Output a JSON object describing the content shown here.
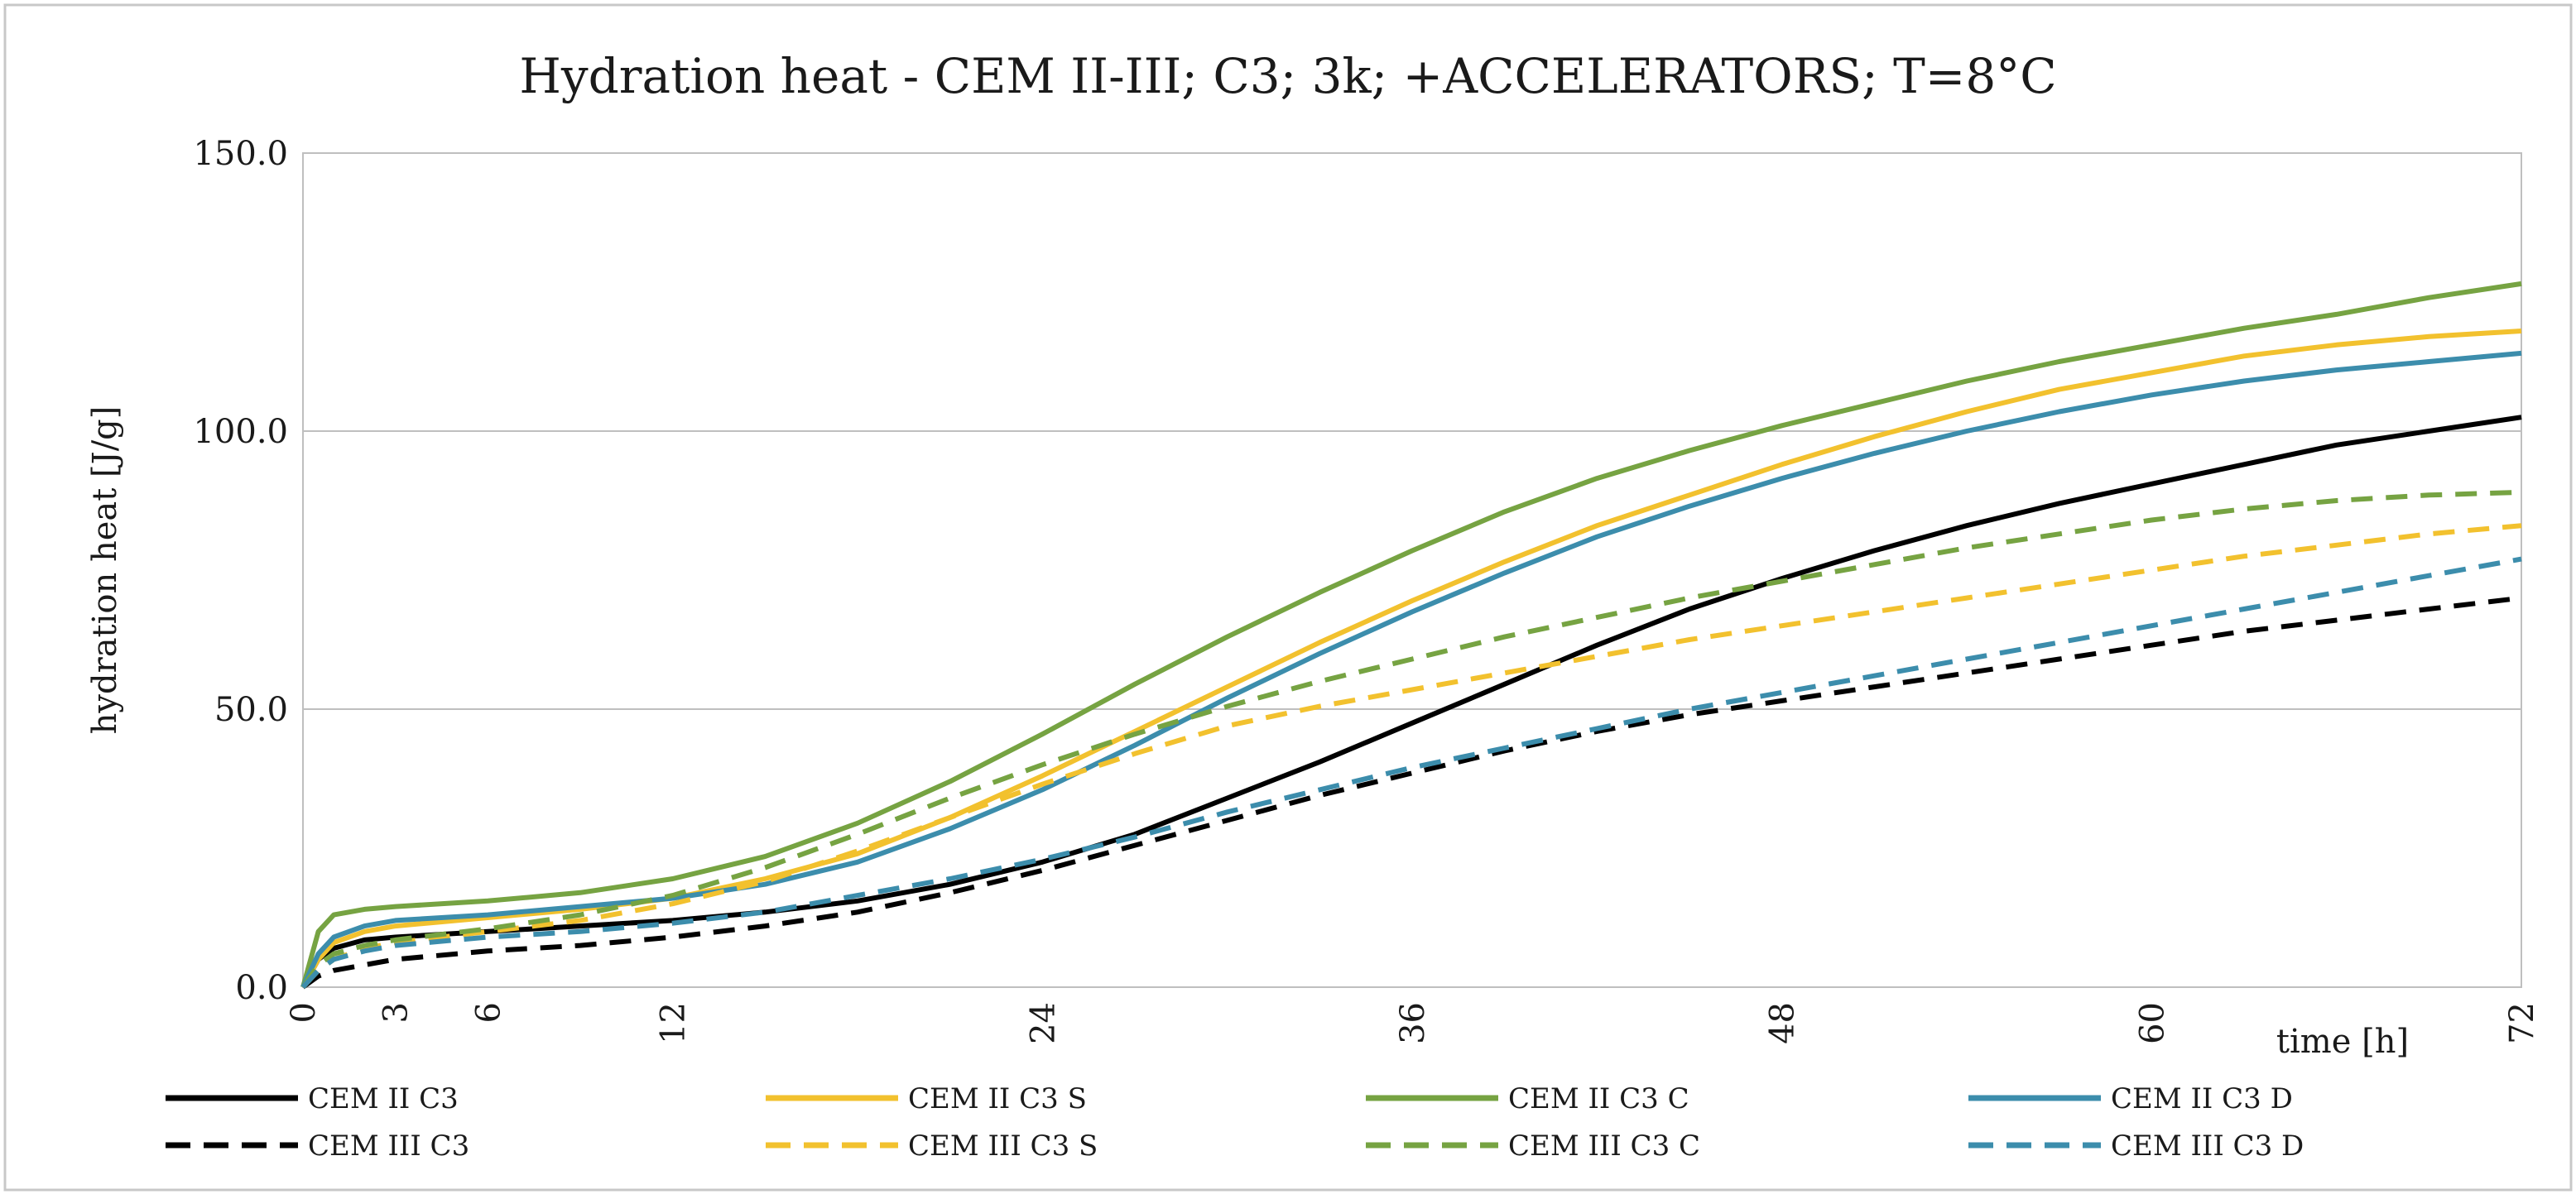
{
  "chart_data": {
    "type": "line",
    "title": "Hydration heat - CEM II-III; C3; 3k; +ACCELERATORS; T=8°C",
    "xlabel": "time [h]",
    "ylabel": "hydration heat [J/g]",
    "xlim": [
      0,
      72
    ],
    "ylim": [
      0,
      150
    ],
    "x_ticks": [
      0,
      3,
      6,
      12,
      24,
      36,
      48,
      60,
      72
    ],
    "x_tick_labels": [
      "0",
      "3",
      "6",
      "12",
      "24",
      "36",
      "48",
      "60",
      "72"
    ],
    "y_ticks": [
      0,
      50,
      100,
      150
    ],
    "y_tick_labels": [
      "0.0",
      "50.0",
      "100.0",
      "150.0"
    ],
    "grid": "horizontal",
    "legend_position": "bottom",
    "x": [
      0,
      0.5,
      1,
      2,
      3,
      6,
      9,
      12,
      15,
      18,
      21,
      24,
      27,
      30,
      33,
      36,
      39,
      42,
      45,
      48,
      51,
      54,
      57,
      60,
      63,
      66,
      69,
      72
    ],
    "series": [
      {
        "name": "CEM II C3",
        "color": "#000000",
        "dash": "solid",
        "values": [
          0,
          5,
          7,
          8.5,
          9,
          10,
          11,
          12,
          13.5,
          15.5,
          18.5,
          22.5,
          27.5,
          34,
          40.5,
          47.5,
          54.5,
          61.5,
          68,
          73.5,
          78.5,
          83,
          87,
          90.5,
          94,
          97.5,
          100,
          102.5
        ]
      },
      {
        "name": "CEM II C3 S",
        "color": "#F2C12E",
        "dash": "solid",
        "values": [
          0,
          5,
          8,
          10,
          11,
          12.5,
          14,
          16,
          19.5,
          24,
          30.5,
          38,
          46,
          54,
          62,
          69.5,
          76.5,
          83,
          88.5,
          94,
          99,
          103.5,
          107.5,
          110.5,
          113.5,
          115.5,
          117,
          118
        ]
      },
      {
        "name": "CEM II C3 C",
        "color": "#76A342",
        "dash": "solid",
        "values": [
          0,
          10,
          13,
          14,
          14.5,
          15.5,
          17,
          19.5,
          23.5,
          29.5,
          37,
          45.5,
          54.5,
          63,
          71,
          78.5,
          85.5,
          91.5,
          96.5,
          101,
          105,
          109,
          112.5,
          115.5,
          118.5,
          121,
          124,
          126.5
        ]
      },
      {
        "name": "CEM II C3 D",
        "color": "#3C8DAC",
        "dash": "solid",
        "values": [
          0,
          6,
          9,
          11,
          12,
          13,
          14.5,
          16,
          18.5,
          22.5,
          28.5,
          35.5,
          43.5,
          52,
          60,
          67.5,
          74.5,
          81,
          86.5,
          91.5,
          96,
          100,
          103.5,
          106.5,
          109,
          111,
          112.5,
          114
        ]
      },
      {
        "name": "CEM III C3",
        "color": "#000000",
        "dash": "dashed",
        "values": [
          0,
          2,
          3,
          4,
          5,
          6.5,
          7.5,
          9,
          11,
          13.5,
          17,
          21,
          25.5,
          30,
          34.5,
          38.5,
          42.5,
          46,
          49,
          51.5,
          54,
          56.5,
          59,
          61.5,
          64,
          66,
          68,
          70
        ]
      },
      {
        "name": "CEM III C3 S",
        "color": "#F2C12E",
        "dash": "dashed",
        "values": [
          0,
          3,
          5,
          7,
          8,
          10,
          12,
          15,
          19,
          24.5,
          30.5,
          36.5,
          42,
          47,
          50.5,
          53.5,
          56.5,
          59.5,
          62.5,
          65,
          67.5,
          70,
          72.5,
          75,
          77.5,
          79.5,
          81.5,
          83
        ]
      },
      {
        "name": "CEM III C3 C",
        "color": "#76A342",
        "dash": "dashed",
        "values": [
          0,
          4,
          6,
          7.5,
          8.5,
          10.5,
          13,
          16.5,
          21.5,
          27.5,
          34,
          40,
          45.5,
          50.5,
          55,
          59,
          63,
          66.5,
          70,
          73,
          76,
          79,
          81.5,
          84,
          86,
          87.5,
          88.5,
          89
        ]
      },
      {
        "name": "CEM III C3 D",
        "color": "#3C8DAC",
        "dash": "dashed",
        "values": [
          0,
          3,
          5,
          6.5,
          7.5,
          9,
          10,
          11.5,
          13.5,
          16.5,
          19.5,
          23,
          27,
          31.5,
          35.5,
          39.5,
          43,
          46.5,
          50,
          53,
          56,
          59,
          62,
          65,
          68,
          71,
          74,
          77
        ]
      }
    ]
  }
}
